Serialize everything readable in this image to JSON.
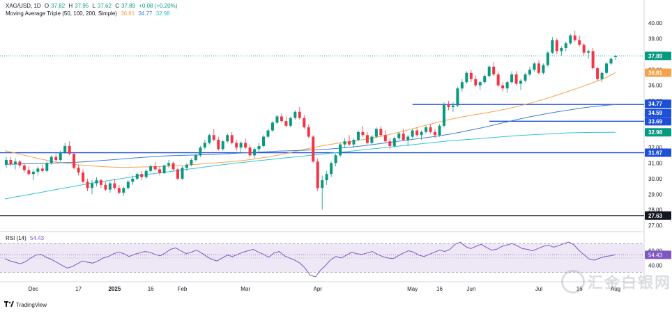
{
  "header": {
    "symbol": "XAG/USD, 1D",
    "open_label": "O",
    "open": "37.82",
    "high_label": "H",
    "high": "37.95",
    "low_label": "L",
    "low": "37.62",
    "close_label": "C",
    "close": "37.89",
    "change": "+0.08 (+0.20%)",
    "ma_title": "Moving Average Triple (50, 100, 200, Simple)",
    "ma50": "36.81",
    "ma100": "34.77",
    "ma200": "32.98"
  },
  "rsi_header": {
    "title": "RSI (14)",
    "value": "54.43"
  },
  "brand": {
    "name": "TradingView",
    "icon": "tradingview-logo-icon",
    "watermark": "汇金白银网"
  },
  "colors": {
    "up": "#089981",
    "down": "#f23645",
    "ma50": "#f7a14a",
    "ma100": "#3d7cd6",
    "ma200": "#2ec4d6",
    "level": "#1d4fd8",
    "rsi": "#7e57c2",
    "rsi_band": "#ede7f6",
    "last_price": "#089981",
    "support": "#131722"
  },
  "chart_data": [
    {
      "type": "candlestick",
      "title": "XAG/USD, 1D",
      "ylim": [
        27.0,
        40.5
      ],
      "y_ticks": [
        "27.00",
        "28.00",
        "29.00",
        "30.00",
        "31.00",
        "32.00",
        "33.00",
        "34.00",
        "35.00",
        "36.00",
        "37.00",
        "38.00",
        "39.00",
        "40.00"
      ],
      "x_tick_labels": [
        "Dec",
        "17",
        "2025",
        "16",
        "Feb",
        "Mar",
        "Apr",
        "May",
        "16",
        "Jun",
        "Jul",
        "16",
        "Aug"
      ],
      "candles_ohlc": [
        [
          30.9,
          31.4,
          30.7,
          31.2
        ],
        [
          31.2,
          31.4,
          30.8,
          30.95
        ],
        [
          30.95,
          31.3,
          30.6,
          31.1
        ],
        [
          31.1,
          31.2,
          30.7,
          30.85
        ],
        [
          30.85,
          31.0,
          30.4,
          30.55
        ],
        [
          30.55,
          30.8,
          30.2,
          30.3
        ],
        [
          30.3,
          30.6,
          29.9,
          30.45
        ],
        [
          30.45,
          30.8,
          30.2,
          30.65
        ],
        [
          30.65,
          30.9,
          30.4,
          30.5
        ],
        [
          30.5,
          31.1,
          30.4,
          31.0
        ],
        [
          31.0,
          31.5,
          30.9,
          31.4
        ],
        [
          31.4,
          31.6,
          31.1,
          31.2
        ],
        [
          31.2,
          31.8,
          31.1,
          31.7
        ],
        [
          31.7,
          32.3,
          31.6,
          32.1
        ],
        [
          32.1,
          32.4,
          31.5,
          31.6
        ],
        [
          31.6,
          31.7,
          30.6,
          30.7
        ],
        [
          30.7,
          30.9,
          30.2,
          30.4
        ],
        [
          30.4,
          30.6,
          29.7,
          29.8
        ],
        [
          29.8,
          30.0,
          29.2,
          29.4
        ],
        [
          29.4,
          29.9,
          29.0,
          29.7
        ],
        [
          29.7,
          30.1,
          29.5,
          29.9
        ],
        [
          29.9,
          30.0,
          29.4,
          29.6
        ],
        [
          29.6,
          29.8,
          29.2,
          29.3
        ],
        [
          29.3,
          29.8,
          29.1,
          29.7
        ],
        [
          29.7,
          30.0,
          29.3,
          29.4
        ],
        [
          29.4,
          29.6,
          29.0,
          29.1
        ],
        [
          29.1,
          29.5,
          28.9,
          29.4
        ],
        [
          29.4,
          29.9,
          29.3,
          29.8
        ],
        [
          29.8,
          30.2,
          29.6,
          30.0
        ],
        [
          30.0,
          30.4,
          29.9,
          30.3
        ],
        [
          30.3,
          30.5,
          29.9,
          30.1
        ],
        [
          30.1,
          30.6,
          30.0,
          30.5
        ],
        [
          30.5,
          30.9,
          30.4,
          30.8
        ],
        [
          30.8,
          31.1,
          30.5,
          30.6
        ],
        [
          30.6,
          30.8,
          30.2,
          30.35
        ],
        [
          30.35,
          30.9,
          30.3,
          30.85
        ],
        [
          30.85,
          31.2,
          30.7,
          31.0
        ],
        [
          31.0,
          31.1,
          30.5,
          30.6
        ],
        [
          30.6,
          30.7,
          29.9,
          30.0
        ],
        [
          30.0,
          30.8,
          29.9,
          30.7
        ],
        [
          30.7,
          31.0,
          30.5,
          30.9
        ],
        [
          30.9,
          31.3,
          30.8,
          31.2
        ],
        [
          31.2,
          31.6,
          31.1,
          31.5
        ],
        [
          31.5,
          32.1,
          31.4,
          32.0
        ],
        [
          32.0,
          32.5,
          31.9,
          32.3
        ],
        [
          32.3,
          32.9,
          32.2,
          32.8
        ],
        [
          32.8,
          33.2,
          32.4,
          32.5
        ],
        [
          32.5,
          32.7,
          31.8,
          31.9
        ],
        [
          31.9,
          32.5,
          31.8,
          32.4
        ],
        [
          32.4,
          32.9,
          32.3,
          32.8
        ],
        [
          32.8,
          33.0,
          32.2,
          32.3
        ],
        [
          32.3,
          32.5,
          31.8,
          32.0
        ],
        [
          32.0,
          32.4,
          31.7,
          32.3
        ],
        [
          32.3,
          32.6,
          31.9,
          32.0
        ],
        [
          32.0,
          32.2,
          31.4,
          31.5
        ],
        [
          31.5,
          32.0,
          31.3,
          31.9
        ],
        [
          31.9,
          32.3,
          31.7,
          32.1
        ],
        [
          32.1,
          32.8,
          32.0,
          32.7
        ],
        [
          32.7,
          33.2,
          32.6,
          33.1
        ],
        [
          33.1,
          33.7,
          33.0,
          33.6
        ],
        [
          33.6,
          34.1,
          33.5,
          34.0
        ],
        [
          34.0,
          34.2,
          33.6,
          33.7
        ],
        [
          33.7,
          34.0,
          33.3,
          33.4
        ],
        [
          33.4,
          34.0,
          33.3,
          33.9
        ],
        [
          33.9,
          34.4,
          33.8,
          34.3
        ],
        [
          34.3,
          34.6,
          33.8,
          33.9
        ],
        [
          33.9,
          34.1,
          33.2,
          33.3
        ],
        [
          33.3,
          33.5,
          32.6,
          32.7
        ],
        [
          32.7,
          32.8,
          31.0,
          31.1
        ],
        [
          31.1,
          31.3,
          29.2,
          29.4
        ],
        [
          29.4,
          30.2,
          28.0,
          29.9
        ],
        [
          29.9,
          30.5,
          29.6,
          30.3
        ],
        [
          30.3,
          31.1,
          30.1,
          31.0
        ],
        [
          31.0,
          31.6,
          30.8,
          31.5
        ],
        [
          31.5,
          32.3,
          31.4,
          32.2
        ],
        [
          32.2,
          32.6,
          32.0,
          32.4
        ],
        [
          32.4,
          32.8,
          32.1,
          32.2
        ],
        [
          32.2,
          32.6,
          32.0,
          32.5
        ],
        [
          32.5,
          33.1,
          32.4,
          33.0
        ],
        [
          33.0,
          33.4,
          32.7,
          32.8
        ],
        [
          32.8,
          33.0,
          32.2,
          32.3
        ],
        [
          32.3,
          32.8,
          32.2,
          32.7
        ],
        [
          32.7,
          33.3,
          32.6,
          33.2
        ],
        [
          33.2,
          33.4,
          32.7,
          32.8
        ],
        [
          32.8,
          33.1,
          32.3,
          32.4
        ],
        [
          32.4,
          32.6,
          31.9,
          32.1
        ],
        [
          32.1,
          32.7,
          32.0,
          32.6
        ],
        [
          32.6,
          33.0,
          32.5,
          32.9
        ],
        [
          32.9,
          33.2,
          32.4,
          32.5
        ],
        [
          32.5,
          32.8,
          32.1,
          32.7
        ],
        [
          32.7,
          33.2,
          32.6,
          33.1
        ],
        [
          33.1,
          33.3,
          32.7,
          32.8
        ],
        [
          32.8,
          33.1,
          32.5,
          33.0
        ],
        [
          33.0,
          33.4,
          32.9,
          33.3
        ],
        [
          33.3,
          33.5,
          32.9,
          33.0
        ],
        [
          33.0,
          33.2,
          32.6,
          32.8
        ],
        [
          32.8,
          33.5,
          32.7,
          33.4
        ],
        [
          33.4,
          34.9,
          33.3,
          34.8
        ],
        [
          34.8,
          35.0,
          34.4,
          34.6
        ],
        [
          34.6,
          34.9,
          34.3,
          34.7
        ],
        [
          34.7,
          35.9,
          34.6,
          35.8
        ],
        [
          35.8,
          36.4,
          35.6,
          36.2
        ],
        [
          36.2,
          36.9,
          36.1,
          36.8
        ],
        [
          36.8,
          37.0,
          36.2,
          36.4
        ],
        [
          36.4,
          36.6,
          35.9,
          36.0
        ],
        [
          36.0,
          36.3,
          35.7,
          36.2
        ],
        [
          36.2,
          36.7,
          36.1,
          36.6
        ],
        [
          36.6,
          37.3,
          36.5,
          37.2
        ],
        [
          37.2,
          37.5,
          36.6,
          36.7
        ],
        [
          36.7,
          36.9,
          35.9,
          36.0
        ],
        [
          36.0,
          36.2,
          35.6,
          35.8
        ],
        [
          35.8,
          36.3,
          35.5,
          36.2
        ],
        [
          36.2,
          36.9,
          36.1,
          36.7
        ],
        [
          36.7,
          36.9,
          36.0,
          36.1
        ],
        [
          36.1,
          36.4,
          35.7,
          36.3
        ],
        [
          36.3,
          36.8,
          36.2,
          36.7
        ],
        [
          36.7,
          37.2,
          36.6,
          37.0
        ],
        [
          37.0,
          37.5,
          36.9,
          37.4
        ],
        [
          37.4,
          37.6,
          36.7,
          36.8
        ],
        [
          36.8,
          37.4,
          36.7,
          37.3
        ],
        [
          37.3,
          38.2,
          37.2,
          38.1
        ],
        [
          38.1,
          39.1,
          38.0,
          38.9
        ],
        [
          38.9,
          39.0,
          38.0,
          38.2
        ],
        [
          38.2,
          38.5,
          37.9,
          38.4
        ],
        [
          38.4,
          38.8,
          38.2,
          38.7
        ],
        [
          38.7,
          39.3,
          38.6,
          39.2
        ],
        [
          39.2,
          39.5,
          38.8,
          38.9
        ],
        [
          38.9,
          39.2,
          38.5,
          38.6
        ],
        [
          38.6,
          38.7,
          37.9,
          38.1
        ],
        [
          38.1,
          38.3,
          37.7,
          38.2
        ],
        [
          38.2,
          38.4,
          37.0,
          37.1
        ],
        [
          37.1,
          37.2,
          36.3,
          36.4
        ],
        [
          36.4,
          36.9,
          36.2,
          36.8
        ],
        [
          36.8,
          37.5,
          36.7,
          37.4
        ],
        [
          37.4,
          37.8,
          37.3,
          37.7
        ],
        [
          37.82,
          37.95,
          37.62,
          37.89
        ]
      ],
      "series": [
        {
          "name": "MA 50",
          "values": [
            31.8,
            31.62,
            31.44,
            31.26,
            31.1,
            31.0,
            30.9,
            30.84,
            30.78,
            30.74,
            30.72,
            30.74,
            30.76,
            30.78,
            30.82,
            30.86,
            30.92,
            30.98,
            31.04,
            31.1,
            31.18,
            31.28,
            31.4,
            31.54,
            31.7,
            31.88,
            32.04,
            32.18,
            32.3,
            32.4,
            32.52,
            32.66,
            32.82,
            33.0,
            33.2,
            33.4,
            33.6,
            33.78,
            33.94,
            34.08,
            34.2,
            34.34,
            34.5,
            34.68,
            34.88,
            35.1,
            35.34,
            35.6,
            35.86,
            36.14,
            36.42,
            36.81
          ]
        },
        {
          "name": "MA 100",
          "values": [
            30.92,
            30.94,
            30.96,
            30.98,
            31.0,
            31.03,
            31.06,
            31.1,
            31.16,
            31.22,
            31.28,
            31.34,
            31.4,
            31.45,
            31.48,
            31.5,
            31.52,
            31.55,
            31.58,
            31.62,
            31.66,
            31.7,
            31.74,
            31.78,
            31.8,
            31.83,
            31.86,
            31.9,
            31.96,
            32.04,
            32.12,
            32.22,
            32.32,
            32.42,
            32.52,
            32.62,
            32.72,
            32.84,
            32.98,
            33.14,
            33.3,
            33.48,
            33.66,
            33.84,
            34.0,
            34.14,
            34.28,
            34.4,
            34.52,
            34.62,
            34.7,
            34.77
          ]
        },
        {
          "name": "MA 200",
          "values": [
            28.7,
            28.84,
            28.98,
            29.12,
            29.26,
            29.4,
            29.54,
            29.68,
            29.8,
            29.92,
            30.04,
            30.16,
            30.28,
            30.38,
            30.48,
            30.58,
            30.68,
            30.78,
            30.88,
            30.98,
            31.06,
            31.14,
            31.22,
            31.3,
            31.38,
            31.46,
            31.54,
            31.62,
            31.7,
            31.78,
            31.86,
            31.94,
            32.02,
            32.1,
            32.18,
            32.26,
            32.34,
            32.42,
            32.48,
            32.54,
            32.6,
            32.66,
            32.72,
            32.78,
            32.82,
            32.86,
            32.9,
            32.94,
            32.96,
            32.97,
            32.98,
            32.98
          ]
        }
      ],
      "horizontal_levels": [
        {
          "label": "34.77",
          "value": 34.77,
          "from_index": 90,
          "kind": "resistance"
        },
        {
          "label": "33.69",
          "value": 33.69,
          "from_index": 107,
          "kind": "resistance"
        },
        {
          "label": "31.67",
          "value": 31.67,
          "from_index": 0,
          "kind": "support"
        },
        {
          "label": "27.63",
          "value": 27.63,
          "from_index": 0,
          "kind": "support"
        }
      ],
      "price_tags": [
        "37.89",
        "36.81",
        "34.77",
        "34.59",
        "33.69",
        "32.98",
        "31.67",
        "27.63"
      ]
    },
    {
      "type": "line",
      "title": "RSI (14)",
      "ylim": [
        20,
        75
      ],
      "y_ticks": [
        "40.00",
        "60.00"
      ],
      "bands": [
        30,
        70
      ],
      "midline": 50,
      "series": [
        {
          "name": "RSI",
          "values": [
            49,
            46,
            44,
            42,
            45,
            50,
            54,
            55,
            51,
            48,
            44,
            40,
            36,
            38,
            42,
            46,
            44,
            43,
            46,
            50,
            52,
            56,
            58,
            56,
            52,
            55,
            57,
            59,
            58,
            55,
            53,
            57,
            62,
            64,
            60,
            56,
            58,
            61,
            57,
            52,
            48,
            46,
            50,
            54,
            52,
            55,
            58,
            60,
            62,
            58,
            55,
            51,
            57,
            59,
            53,
            50,
            47,
            43,
            36,
            26,
            24,
            33,
            40,
            48,
            52,
            50,
            54,
            58,
            56,
            55,
            57,
            59,
            55,
            52,
            50,
            49,
            53,
            57,
            60,
            58,
            54,
            52,
            55,
            58,
            61,
            59,
            62,
            69,
            72,
            66,
            63,
            66,
            69,
            65,
            61,
            62,
            66,
            68,
            70,
            67,
            63,
            62,
            60,
            63,
            66,
            68,
            65,
            67,
            70,
            72,
            68,
            60,
            54,
            48,
            47,
            50,
            52,
            53,
            54.43
          ]
        }
      ]
    }
  ]
}
